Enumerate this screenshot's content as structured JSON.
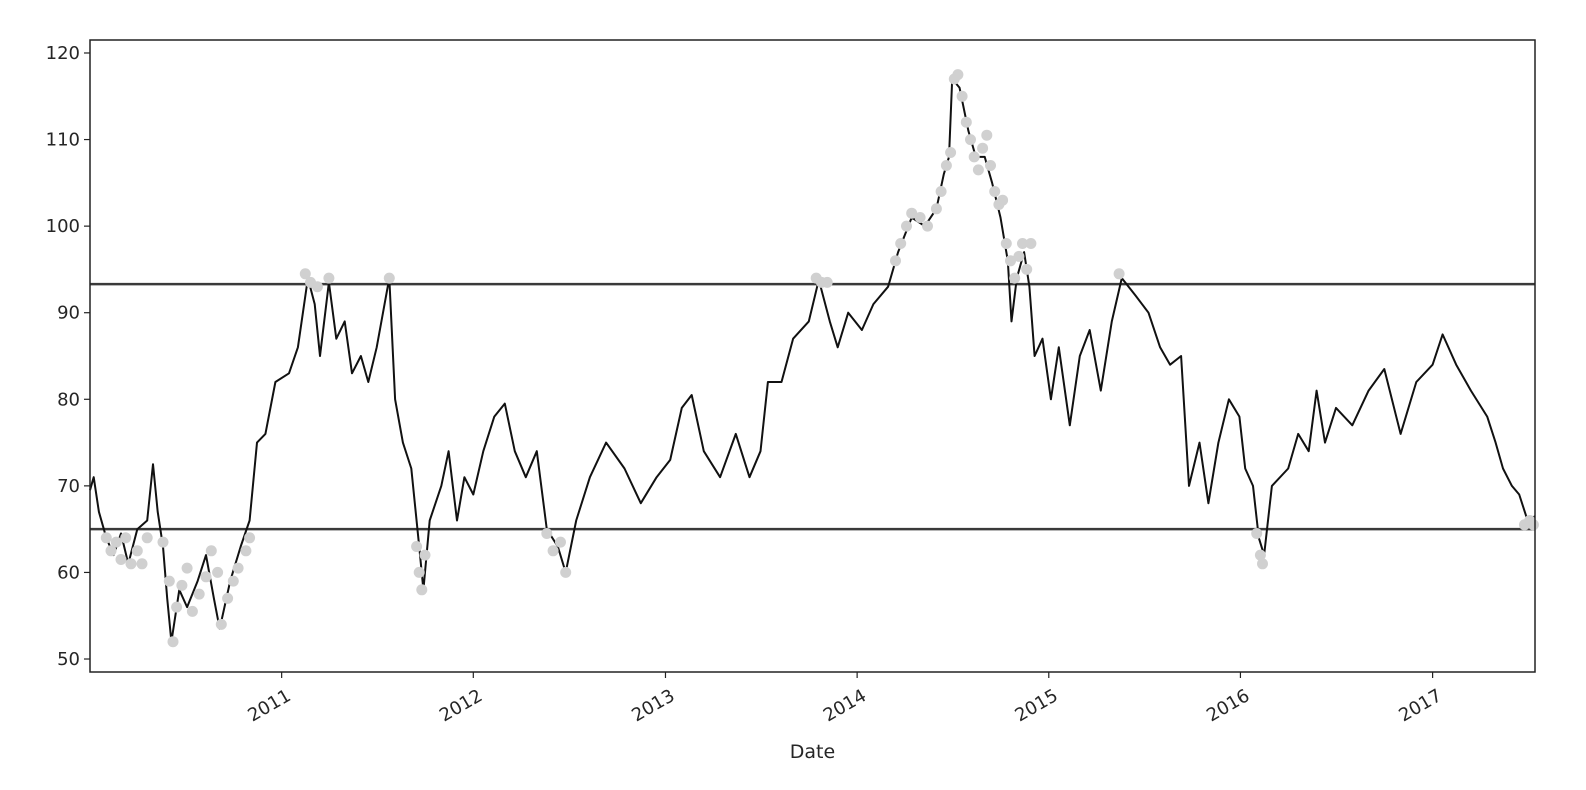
{
  "chart_data": {
    "type": "line",
    "title": "",
    "xlabel": "Date",
    "ylabel": "",
    "ylim": [
      48.5,
      121.5
    ],
    "xlim": [
      "2010-01-01",
      "2017-07-15"
    ],
    "yticks": [
      50,
      60,
      70,
      80,
      90,
      100,
      110,
      120
    ],
    "xticks": [
      {
        "date": "2011-01-01",
        "label": "2011"
      },
      {
        "date": "2012-01-01",
        "label": "2012"
      },
      {
        "date": "2013-01-01",
        "label": "2013"
      },
      {
        "date": "2014-01-01",
        "label": "2014"
      },
      {
        "date": "2015-01-01",
        "label": "2015"
      },
      {
        "date": "2016-01-01",
        "label": "2016"
      },
      {
        "date": "2017-01-01",
        "label": "2017"
      }
    ],
    "grid": false,
    "legend": false,
    "hlines": [
      {
        "y": 93.3
      },
      {
        "y": 65.0
      }
    ],
    "series": [
      {
        "color": "#111111",
        "points": [
          [
            "2010-01-01",
            69.5
          ],
          [
            "2010-01-08",
            71.0
          ],
          [
            "2010-01-18",
            67.0
          ],
          [
            "2010-02-01",
            64.0
          ],
          [
            "2010-02-15",
            62.0
          ],
          [
            "2010-03-01",
            64.5
          ],
          [
            "2010-03-15",
            61.0
          ],
          [
            "2010-04-01",
            65.0
          ],
          [
            "2010-04-20",
            66.0
          ],
          [
            "2010-05-01",
            72.5
          ],
          [
            "2010-05-10",
            67.0
          ],
          [
            "2010-05-20",
            63.0
          ],
          [
            "2010-05-28",
            57.0
          ],
          [
            "2010-06-05",
            52.0
          ],
          [
            "2010-06-20",
            58.0
          ],
          [
            "2010-07-05",
            56.0
          ],
          [
            "2010-07-25",
            59.0
          ],
          [
            "2010-08-10",
            62.0
          ],
          [
            "2010-08-25",
            57.0
          ],
          [
            "2010-09-05",
            53.5
          ],
          [
            "2010-09-25",
            59.0
          ],
          [
            "2010-10-15",
            63.0
          ],
          [
            "2010-11-01",
            66.0
          ],
          [
            "2010-11-15",
            75.0
          ],
          [
            "2010-12-01",
            76.0
          ],
          [
            "2010-12-20",
            82.0
          ],
          [
            "2011-01-15",
            83.0
          ],
          [
            "2011-02-01",
            86.0
          ],
          [
            "2011-02-20",
            94.0
          ],
          [
            "2011-03-05",
            91.0
          ],
          [
            "2011-03-15",
            85.0
          ],
          [
            "2011-04-01",
            93.5
          ],
          [
            "2011-04-15",
            87.0
          ],
          [
            "2011-05-01",
            89.0
          ],
          [
            "2011-05-15",
            83.0
          ],
          [
            "2011-06-01",
            85.0
          ],
          [
            "2011-06-15",
            82.0
          ],
          [
            "2011-07-01",
            86.0
          ],
          [
            "2011-07-25",
            94.0
          ],
          [
            "2011-08-05",
            80.0
          ],
          [
            "2011-08-20",
            75.0
          ],
          [
            "2011-09-05",
            72.0
          ],
          [
            "2011-09-20",
            63.0
          ],
          [
            "2011-09-28",
            58.0
          ],
          [
            "2011-10-10",
            66.0
          ],
          [
            "2011-11-01",
            70.0
          ],
          [
            "2011-11-15",
            74.0
          ],
          [
            "2011-12-01",
            66.0
          ],
          [
            "2011-12-15",
            71.0
          ],
          [
            "2012-01-01",
            69.0
          ],
          [
            "2012-01-20",
            74.0
          ],
          [
            "2012-02-10",
            78.0
          ],
          [
            "2012-03-01",
            79.5
          ],
          [
            "2012-03-20",
            74.0
          ],
          [
            "2012-04-10",
            71.0
          ],
          [
            "2012-05-01",
            74.0
          ],
          [
            "2012-05-20",
            65.0
          ],
          [
            "2012-06-10",
            63.0
          ],
          [
            "2012-06-25",
            60.0
          ],
          [
            "2012-07-15",
            66.0
          ],
          [
            "2012-08-10",
            71.0
          ],
          [
            "2012-09-10",
            75.0
          ],
          [
            "2012-10-15",
            72.0
          ],
          [
            "2012-11-15",
            68.0
          ],
          [
            "2012-12-15",
            71.0
          ],
          [
            "2013-01-10",
            73.0
          ],
          [
            "2013-02-01",
            79.0
          ],
          [
            "2013-02-20",
            80.5
          ],
          [
            "2013-03-15",
            74.0
          ],
          [
            "2013-04-15",
            71.0
          ],
          [
            "2013-05-15",
            76.0
          ],
          [
            "2013-06-10",
            71.0
          ],
          [
            "2013-07-01",
            74.0
          ],
          [
            "2013-07-15",
            82.0
          ],
          [
            "2013-08-10",
            82.0
          ],
          [
            "2013-09-01",
            87.0
          ],
          [
            "2013-10-01",
            89.0
          ],
          [
            "2013-10-20",
            93.8
          ],
          [
            "2013-11-10",
            89.0
          ],
          [
            "2013-11-25",
            86.0
          ],
          [
            "2013-12-15",
            90.0
          ],
          [
            "2014-01-10",
            88.0
          ],
          [
            "2014-02-01",
            91.0
          ],
          [
            "2014-03-01",
            93.0
          ],
          [
            "2014-03-20",
            97.0
          ],
          [
            "2014-04-15",
            101.0
          ],
          [
            "2014-05-10",
            100.0
          ],
          [
            "2014-06-01",
            102.0
          ],
          [
            "2014-06-15",
            106.0
          ],
          [
            "2014-06-25",
            108.0
          ],
          [
            "2014-07-01",
            117.0
          ],
          [
            "2014-07-15",
            116.0
          ],
          [
            "2014-08-01",
            111.0
          ],
          [
            "2014-08-15",
            108.0
          ],
          [
            "2014-09-01",
            108.0
          ],
          [
            "2014-09-15",
            105.0
          ],
          [
            "2014-10-01",
            101.0
          ],
          [
            "2014-10-15",
            96.0
          ],
          [
            "2014-10-22",
            89.0
          ],
          [
            "2014-11-01",
            94.0
          ],
          [
            "2014-11-15",
            97.0
          ],
          [
            "2014-11-25",
            93.0
          ],
          [
            "2014-12-05",
            85.0
          ],
          [
            "2014-12-20",
            87.0
          ],
          [
            "2015-01-05",
            80.0
          ],
          [
            "2015-01-20",
            86.0
          ],
          [
            "2015-02-10",
            77.0
          ],
          [
            "2015-03-01",
            85.0
          ],
          [
            "2015-03-20",
            88.0
          ],
          [
            "2015-04-10",
            81.0
          ],
          [
            "2015-05-01",
            89.0
          ],
          [
            "2015-05-20",
            94.0
          ],
          [
            "2015-06-15",
            92.0
          ],
          [
            "2015-07-10",
            90.0
          ],
          [
            "2015-08-01",
            86.0
          ],
          [
            "2015-08-20",
            84.0
          ],
          [
            "2015-09-10",
            85.0
          ],
          [
            "2015-09-25",
            70.0
          ],
          [
            "2015-10-15",
            75.0
          ],
          [
            "2015-11-01",
            68.0
          ],
          [
            "2015-11-20",
            75.0
          ],
          [
            "2015-12-10",
            80.0
          ],
          [
            "2015-12-30",
            78.0
          ],
          [
            "2016-01-10",
            72.0
          ],
          [
            "2016-01-25",
            70.0
          ],
          [
            "2016-02-05",
            64.0
          ],
          [
            "2016-02-15",
            62.0
          ],
          [
            "2016-03-01",
            70.0
          ],
          [
            "2016-04-01",
            72.0
          ],
          [
            "2016-04-20",
            76.0
          ],
          [
            "2016-05-10",
            74.0
          ],
          [
            "2016-05-25",
            81.0
          ],
          [
            "2016-06-10",
            75.0
          ],
          [
            "2016-07-01",
            79.0
          ],
          [
            "2016-08-01",
            77.0
          ],
          [
            "2016-09-01",
            81.0
          ],
          [
            "2016-10-01",
            83.5
          ],
          [
            "2016-11-01",
            76.0
          ],
          [
            "2016-12-01",
            82.0
          ],
          [
            "2017-01-01",
            84.0
          ],
          [
            "2017-01-20",
            87.5
          ],
          [
            "2017-02-15",
            84.0
          ],
          [
            "2017-03-15",
            81.0
          ],
          [
            "2017-04-15",
            78.0
          ],
          [
            "2017-05-01",
            75.0
          ],
          [
            "2017-05-15",
            72.0
          ],
          [
            "2017-06-01",
            70.0
          ],
          [
            "2017-06-15",
            69.0
          ],
          [
            "2017-07-01",
            66.0
          ],
          [
            "2017-07-15",
            66.5
          ]
        ]
      },
      {
        "color": "#d0d0d0",
        "marker": "circle",
        "points": [
          [
            "2010-02-01",
            64.0
          ],
          [
            "2010-02-10",
            62.5
          ],
          [
            "2010-02-20",
            63.5
          ],
          [
            "2010-03-01",
            61.5
          ],
          [
            "2010-03-10",
            64.0
          ],
          [
            "2010-03-20",
            61.0
          ],
          [
            "2010-04-01",
            62.5
          ],
          [
            "2010-04-10",
            61.0
          ],
          [
            "2010-04-20",
            64.0
          ],
          [
            "2010-05-20",
            63.5
          ],
          [
            "2010-06-01",
            59.0
          ],
          [
            "2010-06-08",
            52.0
          ],
          [
            "2010-06-15",
            56.0
          ],
          [
            "2010-06-25",
            58.5
          ],
          [
            "2010-07-05",
            60.5
          ],
          [
            "2010-07-15",
            55.5
          ],
          [
            "2010-07-28",
            57.5
          ],
          [
            "2010-08-10",
            59.5
          ],
          [
            "2010-08-20",
            62.5
          ],
          [
            "2010-09-01",
            60.0
          ],
          [
            "2010-09-08",
            54.0
          ],
          [
            "2010-09-20",
            57.0
          ],
          [
            "2010-10-01",
            59.0
          ],
          [
            "2010-10-10",
            60.5
          ],
          [
            "2010-10-25",
            62.5
          ],
          [
            "2010-11-01",
            64.0
          ],
          [
            "2011-02-15",
            94.5
          ],
          [
            "2011-02-25",
            93.5
          ],
          [
            "2011-03-10",
            93.0
          ],
          [
            "2011-04-01",
            94.0
          ],
          [
            "2011-07-25",
            94.0
          ],
          [
            "2011-09-15",
            63.0
          ],
          [
            "2011-09-20",
            60.0
          ],
          [
            "2011-09-25",
            58.0
          ],
          [
            "2011-10-01",
            62.0
          ],
          [
            "2012-05-20",
            64.5
          ],
          [
            "2012-06-01",
            62.5
          ],
          [
            "2012-06-15",
            63.5
          ],
          [
            "2012-06-25",
            60.0
          ],
          [
            "2013-10-15",
            94.0
          ],
          [
            "2013-10-25",
            93.5
          ],
          [
            "2013-11-05",
            93.5
          ],
          [
            "2014-03-15",
            96.0
          ],
          [
            "2014-03-25",
            98.0
          ],
          [
            "2014-04-05",
            100.0
          ],
          [
            "2014-04-15",
            101.5
          ],
          [
            "2014-05-01",
            101.0
          ],
          [
            "2014-05-15",
            100.0
          ],
          [
            "2014-06-01",
            102.0
          ],
          [
            "2014-06-10",
            104.0
          ],
          [
            "2014-06-20",
            107.0
          ],
          [
            "2014-06-28",
            108.5
          ],
          [
            "2014-07-05",
            117.0
          ],
          [
            "2014-07-12",
            117.5
          ],
          [
            "2014-07-20",
            115.0
          ],
          [
            "2014-07-28",
            112.0
          ],
          [
            "2014-08-05",
            110.0
          ],
          [
            "2014-08-12",
            108.0
          ],
          [
            "2014-08-20",
            106.5
          ],
          [
            "2014-08-28",
            109.0
          ],
          [
            "2014-09-05",
            110.5
          ],
          [
            "2014-09-12",
            107.0
          ],
          [
            "2014-09-20",
            104.0
          ],
          [
            "2014-09-28",
            102.5
          ],
          [
            "2014-10-05",
            103.0
          ],
          [
            "2014-10-12",
            98.0
          ],
          [
            "2014-10-20",
            96.0
          ],
          [
            "2014-10-28",
            94.0
          ],
          [
            "2014-11-05",
            96.5
          ],
          [
            "2014-11-12",
            98.0
          ],
          [
            "2014-11-20",
            95.0
          ],
          [
            "2014-11-28",
            98.0
          ],
          [
            "2015-05-15",
            94.5
          ],
          [
            "2016-02-01",
            64.5
          ],
          [
            "2016-02-08",
            62.0
          ],
          [
            "2016-02-12",
            61.0
          ],
          [
            "2017-06-25",
            65.5
          ],
          [
            "2017-07-05",
            66.0
          ],
          [
            "2017-07-12",
            65.5
          ]
        ]
      }
    ]
  }
}
